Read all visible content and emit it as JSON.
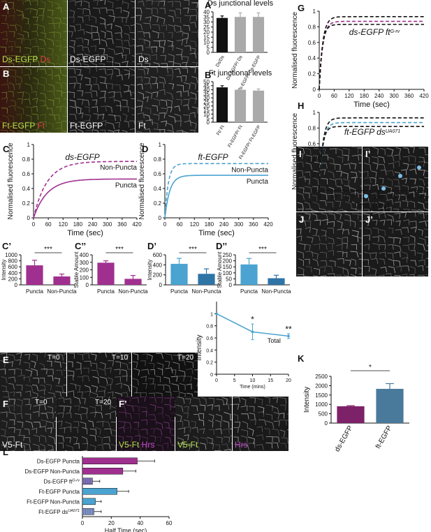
{
  "panels": {
    "A": {
      "label": "A",
      "captions": {
        "merge_green": "Ds-EGFP",
        "merge_red": "Ds",
        "ch1": "Ds-EGFP",
        "ch2": "Ds"
      }
    },
    "B": {
      "label": "B",
      "captions": {
        "merge_green": "Ft-EGFP",
        "merge_red": "Ft",
        "ch1": "Ft-EGFP",
        "ch2": "Ft"
      }
    },
    "E": {
      "label": "E",
      "timepoints": [
        "T=0",
        "T=10",
        "T=20"
      ]
    },
    "F": {
      "label": "F",
      "timepoints": [
        "T=0",
        "T=20"
      ],
      "caption": "V5-Ft"
    },
    "F2": {
      "label": "F’",
      "captions": {
        "merge_green": "V5-Ft",
        "merge_magenta": "Hrs",
        "ch1": "V5-Ft",
        "ch2": "Hrs"
      }
    },
    "I": {
      "label": "I",
      "label2": "I’"
    },
    "J": {
      "label": "J",
      "label2": "J’"
    }
  },
  "colors": {
    "magenta": "#a0308f",
    "blue": "#4aa3d0",
    "steel": "#4a7a9b",
    "black": "#111111",
    "grey": "#aaaaaa"
  },
  "chart_data": [
    {
      "id": "A2",
      "panel_label": "A’",
      "type": "bar",
      "title": "Ds junctional levels",
      "categories": [
        "Ds/Ds",
        "Ds-EGFP/ Ds",
        "Ds-EGFP/ Ds-EGFP"
      ],
      "values": [
        34,
        35,
        35
      ],
      "errors": [
        2,
        4,
        4
      ],
      "bar_colors": [
        "#111111",
        "#aaaaaa",
        "#aaaaaa"
      ],
      "ylim": [
        0,
        40
      ],
      "yticks": [
        0,
        5,
        10,
        15,
        20,
        25,
        30,
        35,
        40
      ]
    },
    {
      "id": "B2",
      "panel_label": "B’",
      "type": "bar",
      "title": "Ft junctional levels",
      "categories": [
        "Ft/ Ft",
        "Ft-EGFP/ Ft",
        "Ft-EGFP/ Ft-EGFP"
      ],
      "values": [
        43,
        40,
        39
      ],
      "errors": [
        2,
        2,
        2
      ],
      "bar_colors": [
        "#111111",
        "#aaaaaa",
        "#aaaaaa"
      ],
      "ylim": [
        0,
        50
      ],
      "yticks": [
        0,
        5,
        10,
        15,
        20,
        25,
        30,
        35,
        40,
        45,
        50
      ]
    },
    {
      "id": "C",
      "panel_label": "C",
      "type": "line",
      "annotation": "ds-EGFP",
      "xlabel": "Time (sec)",
      "ylabel": "Normalised fluorescence",
      "xlim": [
        0,
        420
      ],
      "ylim": [
        0,
        1
      ],
      "xticks": [
        0,
        60,
        120,
        180,
        240,
        300,
        360,
        420
      ],
      "yticks": [
        0,
        0.2,
        0.4,
        0.6,
        0.8,
        1
      ],
      "series": [
        {
          "name": "Non-Puncta",
          "plateau": 0.77,
          "tau": 55,
          "dashed": true,
          "color": "#a0308f"
        },
        {
          "name": "Puncta",
          "plateau": 0.53,
          "tau": 55,
          "dashed": false,
          "color": "#a0308f"
        }
      ]
    },
    {
      "id": "D",
      "panel_label": "D",
      "type": "line",
      "annotation": "ft-EGFP",
      "xlabel": "Time (sec)",
      "ylabel": "Normalised fluorescence",
      "xlim": [
        0,
        420
      ],
      "ylim": [
        0,
        1
      ],
      "xticks": [
        0,
        60,
        120,
        180,
        240,
        300,
        360,
        420
      ],
      "yticks": [
        0,
        0.2,
        0.4,
        0.6,
        0.8,
        1
      ],
      "series": [
        {
          "name": "Non-Puncta",
          "plateau": 0.74,
          "tau": 14,
          "dashed": true,
          "color": "#4aa3d0"
        },
        {
          "name": "Puncta",
          "plateau": 0.58,
          "tau": 20,
          "dashed": false,
          "color": "#4aa3d0"
        }
      ]
    },
    {
      "id": "C1",
      "panel_label": "C’",
      "type": "bar",
      "ylabel": "Intensity",
      "categories": [
        "Puncta",
        "Non-Puncta"
      ],
      "values": [
        650,
        280
      ],
      "errors": [
        170,
        80
      ],
      "bar_colors": [
        "#a0308f",
        "#a0308f"
      ],
      "ylim": [
        0,
        1000
      ],
      "yticks": [
        0,
        200,
        400,
        600,
        800,
        1000
      ],
      "significance": "***"
    },
    {
      "id": "C2",
      "panel_label": "C’’",
      "type": "bar",
      "ylabel": "Stable Amount",
      "categories": [
        "Puncta",
        "Non-Puncta"
      ],
      "values": [
        295,
        80
      ],
      "errors": [
        25,
        45
      ],
      "bar_colors": [
        "#a0308f",
        "#a0308f"
      ],
      "ylim": [
        0,
        400
      ],
      "yticks": [
        0,
        100,
        200,
        300,
        400
      ],
      "significance": "***"
    },
    {
      "id": "D1",
      "panel_label": "D’",
      "type": "bar",
      "ylabel": "Intensity",
      "categories": [
        "Puncta",
        "Non-Puncta"
      ],
      "values": [
        420,
        220
      ],
      "errors": [
        110,
        100
      ],
      "bar_colors": [
        "#4aa3d0",
        "#2e74a6"
      ],
      "ylim": [
        0,
        600
      ],
      "yticks": [
        0,
        200,
        400,
        600
      ],
      "significance": "***"
    },
    {
      "id": "D2",
      "panel_label": "D’’",
      "type": "bar",
      "ylabel": "Stable Amount",
      "categories": [
        "Puncta",
        "Non-Puncta"
      ],
      "values": [
        170,
        55
      ],
      "errors": [
        50,
        25
      ],
      "bar_colors": [
        "#4aa3d0",
        "#2e74a6"
      ],
      "ylim": [
        0,
        250
      ],
      "yticks": [
        0,
        50,
        100,
        150,
        200,
        250
      ],
      "significance": "***"
    },
    {
      "id": "E",
      "panel_label": "",
      "type": "line",
      "xlabel": "Time (mins)",
      "ylabel": "Intensity",
      "x": [
        0,
        10,
        20
      ],
      "values": [
        1.0,
        0.7,
        0.63
      ],
      "errors": [
        0,
        0.13,
        0.04
      ],
      "xlim": [
        0,
        20
      ],
      "ylim": [
        0,
        1.2
      ],
      "xticks": [
        0,
        5,
        10,
        15,
        20
      ],
      "yticks": [
        0,
        0.2,
        0.4,
        0.6,
        0.8,
        1
      ],
      "annotations": {
        "star1": "*",
        "star2": "**",
        "total": "Total"
      },
      "color": "#4aa3d0"
    },
    {
      "id": "G",
      "panel_label": "G",
      "type": "line",
      "annotation": "ds-EGFP ft",
      "annotation_sup": "G-rv",
      "xlabel": "Time (sec)",
      "ylabel": "Normalised fluorescence",
      "xlim": [
        0,
        420
      ],
      "ylim": [
        0,
        1
      ],
      "xticks": [
        0,
        60,
        120,
        180,
        240,
        300,
        360,
        420
      ],
      "yticks": [
        0,
        0.2,
        0.4,
        0.6,
        0.8,
        1
      ],
      "series": [
        {
          "plateau": 0.93,
          "tau": 14,
          "dashed": true,
          "color": "#111111"
        },
        {
          "plateau": 0.87,
          "tau": 14,
          "dashed": true,
          "color": "#a0308f"
        },
        {
          "plateau": 0.83,
          "tau": 12,
          "dashed": true,
          "color": "#111111"
        }
      ]
    },
    {
      "id": "H",
      "panel_label": "H",
      "type": "line",
      "annotation": "ft-EGFP ds",
      "annotation_sup": "UA071",
      "xlabel": "Time (sec)",
      "ylabel": "Normalised fluorescence",
      "xlim": [
        0,
        420
      ],
      "ylim": [
        0,
        1
      ],
      "xticks": [
        0,
        60,
        120,
        180,
        240,
        300,
        360,
        420
      ],
      "yticks": [
        0,
        0.2,
        0.4,
        0.6,
        0.8,
        1
      ],
      "series": [
        {
          "plateau": 0.93,
          "tau": 14,
          "dashed": true,
          "color": "#111111"
        },
        {
          "plateau": 0.87,
          "tau": 14,
          "dashed": true,
          "color": "#4aa3d0"
        },
        {
          "plateau": 0.82,
          "tau": 12,
          "dashed": true,
          "color": "#111111"
        }
      ]
    },
    {
      "id": "K",
      "panel_label": "K",
      "type": "bar",
      "ylabel": "Intensity",
      "categories": [
        "ds-EGFP",
        "ft-EGFP"
      ],
      "values": [
        900,
        1830
      ],
      "errors": [
        30,
        280
      ],
      "bar_colors": [
        "#7d2268",
        "#4a7a9b"
      ],
      "ylim": [
        0,
        2500
      ],
      "yticks": [
        0,
        500,
        1000,
        1500,
        2000,
        2500
      ],
      "significance": "*"
    },
    {
      "id": "L",
      "panel_label": "L",
      "type": "bar",
      "orientation": "horizontal",
      "xlabel": "Half Time (sec)",
      "categories": [
        "Ds-EGFP Puncta",
        "Ds-EGFP Non-Puncta",
        "Ds-EGFP ft",
        "Ft-EGFP Puncta",
        "Ft-EGFP Non-Puncta",
        "Ft-EGFP ds"
      ],
      "category_sups": [
        "",
        "",
        "G-rv",
        "",
        "",
        "UA071"
      ],
      "values": [
        38,
        28,
        7,
        24,
        9,
        8
      ],
      "errors": [
        12,
        9,
        5,
        8,
        4,
        5
      ],
      "bar_colors": [
        "#a0308f",
        "#a0308f",
        "#8a7bc8",
        "#4aa3d0",
        "#4aa3d0",
        "#8a9fd8"
      ],
      "xlim": [
        0,
        60
      ],
      "xticks": [
        0,
        20,
        40,
        60
      ]
    }
  ]
}
